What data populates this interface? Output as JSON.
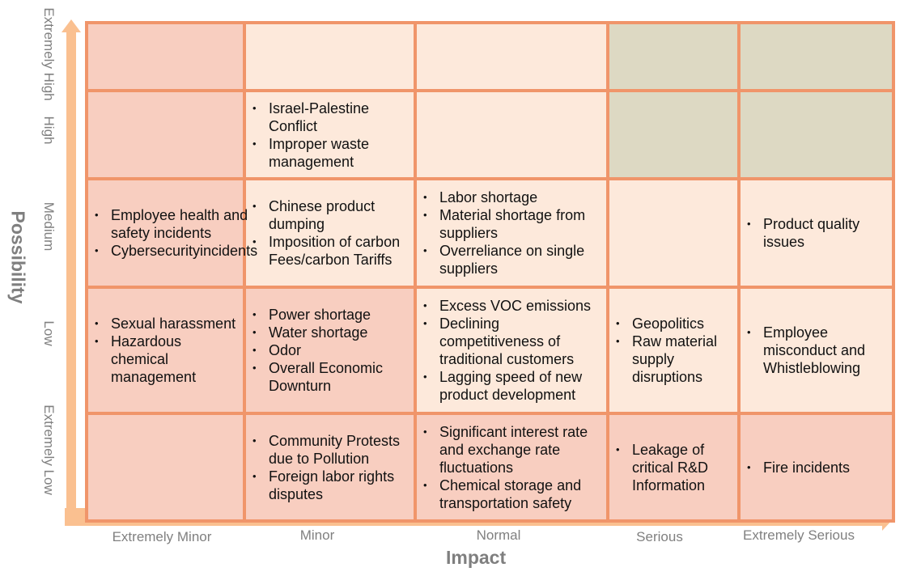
{
  "axes": {
    "x_title": "Impact",
    "y_title": "Possibility",
    "x_labels": [
      "Extremely Minor",
      "Minor",
      "Normal",
      "Serious",
      "Extremely Serious"
    ],
    "y_labels": [
      "Extremely High",
      "High",
      "Medium",
      "Low",
      "Extremely Low"
    ]
  },
  "colors": {
    "high": "#F8CEC0",
    "mid": "#FDE9DB",
    "low": "#DDD9C3",
    "border": "#F0956A",
    "arrow": "#FAC090"
  },
  "rows": [
    {
      "cells": [
        {
          "tone": "pink",
          "items": []
        },
        {
          "tone": "light",
          "items": []
        },
        {
          "tone": "light",
          "items": []
        },
        {
          "tone": "grey",
          "items": []
        },
        {
          "tone": "grey",
          "items": []
        }
      ]
    },
    {
      "cells": [
        {
          "tone": "pink",
          "items": []
        },
        {
          "tone": "light",
          "items": [
            "Israel-Palestine Conflict",
            "Improper waste management"
          ]
        },
        {
          "tone": "light",
          "items": []
        },
        {
          "tone": "grey",
          "items": []
        },
        {
          "tone": "grey",
          "items": []
        }
      ]
    },
    {
      "cells": [
        {
          "tone": "pink",
          "items": [
            "Employee health and safety incidents",
            "Cybersecurityincidents"
          ]
        },
        {
          "tone": "light",
          "items": [
            "Chinese product dumping",
            "Imposition of carbon Fees/carbon Tariffs"
          ]
        },
        {
          "tone": "light",
          "items": [
            "Labor shortage",
            "Material shortage from suppliers",
            "Overreliance on single suppliers"
          ]
        },
        {
          "tone": "light",
          "items": []
        },
        {
          "tone": "light",
          "items": [
            "Product quality issues"
          ]
        }
      ]
    },
    {
      "cells": [
        {
          "tone": "pink",
          "items": [
            "Sexual harassment",
            "Hazardous chemical management"
          ]
        },
        {
          "tone": "pink",
          "items": [
            "Power shortage",
            "Water shortage",
            "Odor",
            "Overall Economic Downturn"
          ]
        },
        {
          "tone": "light",
          "items": [
            "Excess VOC emissions",
            "Declining competitiveness of traditional customers",
            "Lagging speed of new product development"
          ]
        },
        {
          "tone": "light",
          "items": [
            "Geopolitics",
            "Raw material supply disruptions"
          ]
        },
        {
          "tone": "light",
          "items": [
            "Employee misconduct and Whistleblowing"
          ]
        }
      ]
    },
    {
      "cells": [
        {
          "tone": "pink",
          "items": []
        },
        {
          "tone": "pink",
          "items": [
            "Community Protests due to Pollution",
            "Foreign labor rights disputes"
          ]
        },
        {
          "tone": "pink",
          "items": [
            "Significant interest rate and exchange rate fluctuations",
            "Chemical storage and transportation safety"
          ]
        },
        {
          "tone": "pink",
          "items": [
            "Leakage of critical R&D Information"
          ]
        },
        {
          "tone": "pink",
          "items": [
            "Fire incidents"
          ]
        }
      ]
    }
  ]
}
